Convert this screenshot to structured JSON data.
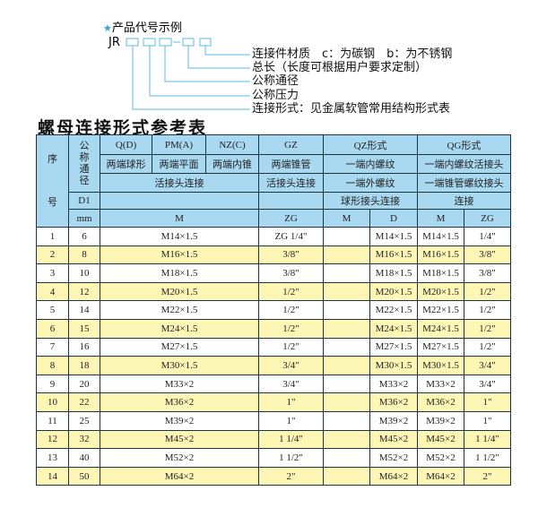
{
  "example": {
    "star_icon": "star-icon",
    "heading": "产品代号示例",
    "prefix": "JR",
    "labels": [
      "连接件材质　c：为碳钢　b：为不锈钢",
      "总长（长度可根据用户要求定制）",
      "公称通径",
      "公称压力",
      "连接形式：见金属软管常用结构形式表"
    ]
  },
  "title": "螺母连接形式参考表",
  "header": {
    "seq": "序号",
    "dn": "公称通径",
    "d1": "D1",
    "mm": "mm",
    "row1": [
      "Q(D)",
      "PM(A)",
      "NZ(C)",
      "GZ",
      "QZ形式",
      "QG形式"
    ],
    "row2": [
      "两端球形",
      "两端平面",
      "两端内锥",
      "两端锥管",
      "一端内螺纹",
      "一端内螺纹活接头"
    ],
    "row3": [
      "活接头连接",
      "活接头连接",
      "一端外螺纹",
      "一端锥管螺纹接头"
    ],
    "row4": [
      "",
      "",
      "球形接头连接",
      "连接"
    ],
    "row5": [
      "M",
      "ZG",
      "M",
      "D",
      "M",
      "ZG"
    ]
  },
  "rows": [
    [
      "1",
      "6",
      "M14×1.5",
      "ZG 1/4\"",
      "",
      "M14×1.5",
      "M14×1.5",
      "1/4\""
    ],
    [
      "2",
      "8",
      "M16×1.5",
      "3/8\"",
      "",
      "M16×1.5",
      "M16×1.5",
      "3/8\""
    ],
    [
      "3",
      "10",
      "M18×1.5",
      "3/8\"",
      "",
      "M18×1.5",
      "M18×1.5",
      "3/8\""
    ],
    [
      "4",
      "12",
      "M20×1.5",
      "1/2\"",
      "",
      "M20×1.5",
      "M20×1.5",
      "1/2\""
    ],
    [
      "5",
      "14",
      "M22×1.5",
      "1/2\"",
      "",
      "M22×1.5",
      "M22×1.5",
      "1/2\""
    ],
    [
      "6",
      "15",
      "M24×1.5",
      "1/2\"",
      "",
      "M24×1.5",
      "M24×1.5",
      "1/2\""
    ],
    [
      "7",
      "16",
      "M27×1.5",
      "1/2\"",
      "",
      "M27×1.5",
      "M27×1.5",
      "1/2\""
    ],
    [
      "8",
      "18",
      "M30×1.5",
      "3/4\"",
      "",
      "M30×1.5",
      "M30×1.5",
      "3/4\""
    ],
    [
      "9",
      "20",
      "M33×2",
      "3/4\"",
      "",
      "M33×2",
      "M33×2",
      "3/4\""
    ],
    [
      "10",
      "22",
      "M36×2",
      "1\"",
      "",
      "M36×2",
      "M36×2",
      "1\""
    ],
    [
      "11",
      "25",
      "M39×2",
      "1\"",
      "",
      "M39×2",
      "M39×2",
      "1\""
    ],
    [
      "12",
      "32",
      "M45×2",
      "1 1/4\"",
      "",
      "M45×2",
      "M45×2",
      "1 1/4\""
    ],
    [
      "13",
      "40",
      "M52×2",
      "1 1/2\"",
      "",
      "M52×2",
      "M52×2",
      "1 1/2\""
    ],
    [
      "14",
      "50",
      "M64×2",
      "2\"",
      "",
      "M64×2",
      "M64×2",
      "2\""
    ]
  ],
  "colors": {
    "header_bg": "#a9d9f0",
    "alt_row": "#fdf6b4",
    "border": "#1c3340",
    "accent": "#3aaee0"
  }
}
